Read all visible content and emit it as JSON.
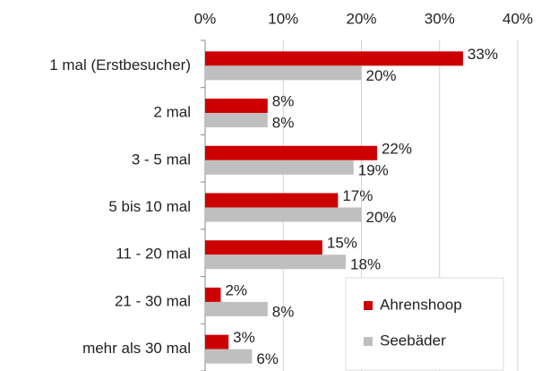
{
  "chart_data": {
    "type": "bar",
    "orientation": "horizontal",
    "categories": [
      "1 mal (Erstbesucher)",
      "2 mal",
      "3 - 5 mal",
      "5 bis 10 mal",
      "11 - 20 mal",
      "21 - 30 mal",
      "mehr als 30 mal"
    ],
    "series": [
      {
        "name": "Ahrenshoop",
        "color": "#cc0000",
        "values": [
          33,
          8,
          22,
          17,
          15,
          2,
          3
        ],
        "value_labels": [
          "33%",
          "8%",
          "22%",
          "17%",
          "15%",
          "2%",
          "3%"
        ]
      },
      {
        "name": "Seebäder",
        "color": "#bfbfbf",
        "values": [
          20,
          8,
          19,
          20,
          18,
          8,
          6
        ],
        "value_labels": [
          "20%",
          "8%",
          "19%",
          "20%",
          "18%",
          "8%",
          "6%"
        ]
      }
    ],
    "ylim": [
      0,
      40
    ],
    "yticks": [
      {
        "value": 0,
        "label": "0%"
      },
      {
        "value": 10,
        "label": "10%"
      },
      {
        "value": 20,
        "label": "20%"
      },
      {
        "value": 30,
        "label": "30%"
      },
      {
        "value": 40,
        "label": "40%"
      }
    ],
    "grid": true,
    "legend": "lower right"
  }
}
